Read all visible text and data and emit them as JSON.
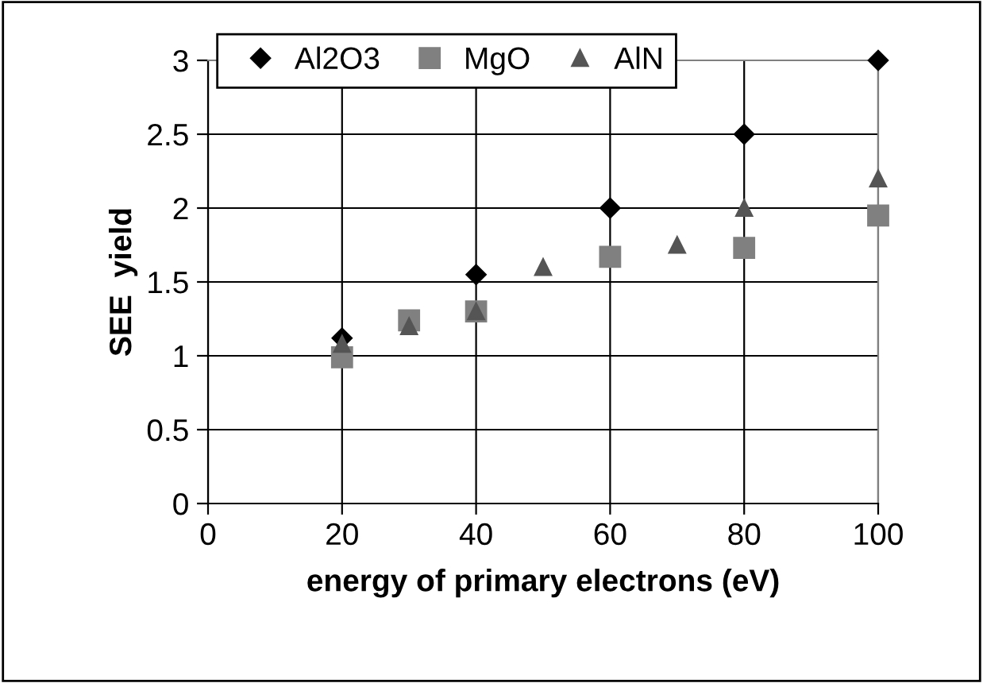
{
  "chart_data": {
    "type": "scatter",
    "xlabel": "energy of primary electrons (eV)",
    "ylabel": "SEE  yield",
    "series": [
      {
        "name": "Al2O3",
        "color": "#000000",
        "marker": "diamond",
        "x": [
          20,
          40,
          60,
          80,
          100
        ],
        "values": [
          1.12,
          1.55,
          2.0,
          2.5,
          3.0
        ]
      },
      {
        "name": "MgO",
        "color": "#808080",
        "marker": "square",
        "x": [
          20,
          30,
          40,
          60,
          80,
          100
        ],
        "values": [
          0.99,
          1.24,
          1.3,
          1.67,
          1.73,
          1.95
        ]
      },
      {
        "name": "AlN",
        "color": "#555555",
        "marker": "triangle",
        "x": [
          20,
          30,
          40,
          50,
          70,
          80,
          100
        ],
        "values": [
          1.08,
          1.2,
          1.3,
          1.6,
          1.75,
          2.0,
          2.2
        ]
      }
    ],
    "xlim": [
      0,
      100
    ],
    "xticks": [
      0,
      20,
      40,
      60,
      80,
      100
    ],
    "ylim": [
      0,
      3
    ],
    "yticks": [
      0,
      0.5,
      1,
      1.5,
      2,
      2.5,
      3
    ],
    "grid": true,
    "legend": "top left"
  }
}
